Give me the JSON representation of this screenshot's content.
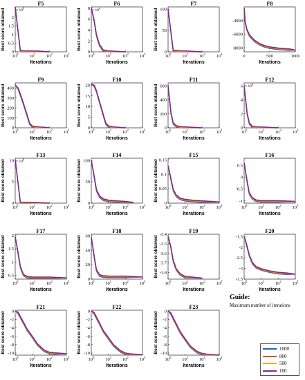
{
  "guide": {
    "title": "Guide:",
    "subtitle": "Maximum number of iterations"
  },
  "legend": [
    {
      "label": "1000",
      "color": "#1f5fbf"
    },
    {
      "label": "800",
      "color": "#d9541a"
    },
    {
      "label": "500",
      "color": "#e8b21c"
    },
    {
      "label": "100",
      "color": "#7b2a8e"
    }
  ],
  "shade_color": "#f4c6ea",
  "chart_data": [
    {
      "title": "F5",
      "type": "line",
      "xscale": "log",
      "xlim": [
        1,
        1000
      ],
      "xticks": [
        "10^0",
        "10^1",
        "10^2",
        "10^3"
      ],
      "xlabel": "Iterations",
      "ylabel": "Best score obtained",
      "exponent": "× 10^8",
      "ylim": [
        0,
        2.6
      ],
      "yticks": [
        0,
        0.5,
        1,
        1.5,
        2
      ],
      "ytick_labels": [
        "0",
        "0.5",
        "1",
        "1.5",
        "2"
      ],
      "series_x": [
        1,
        2,
        3,
        5,
        10,
        20,
        100
      ],
      "series_y": [
        2.6,
        0.03,
        0.01,
        0.005,
        0.002,
        0.001,
        0.0008
      ],
      "shade": false
    },
    {
      "title": "F6",
      "type": "line",
      "xscale": "log",
      "xlim": [
        1,
        1000
      ],
      "xticks": [
        "10^0",
        "10^1",
        "10^2",
        "10^3"
      ],
      "xlabel": "Iterations",
      "ylabel": "Best score obtained",
      "exponent": "× 10^4",
      "ylim": [
        0,
        8.2
      ],
      "yticks": [
        0,
        2,
        4,
        6,
        8
      ],
      "ytick_labels": [
        "0",
        "2",
        "4",
        "6",
        "8"
      ],
      "series_x": [
        1,
        1.5,
        2,
        3,
        5,
        10,
        100
      ],
      "series_y": [
        8,
        5.5,
        3.0,
        1.2,
        0.2,
        0.02,
        0.005
      ],
      "shade": false
    },
    {
      "title": "F7",
      "type": "line",
      "xscale": "log",
      "xlim": [
        1,
        1000
      ],
      "xticks": [
        "10^0",
        "10^1",
        "10^2",
        "10^3"
      ],
      "xlabel": "Iterations",
      "ylabel": "Best score obtained",
      "exponent": "",
      "ylim": [
        0,
        105
      ],
      "yticks": [
        0,
        50,
        100
      ],
      "ytick_labels": [
        "0",
        "50",
        "100"
      ],
      "series_x": [
        1,
        2,
        3,
        5,
        10,
        100
      ],
      "series_y": [
        100,
        2,
        1,
        0.5,
        0.2,
        0.05
      ],
      "shade": false
    },
    {
      "title": "F8",
      "type": "line",
      "xscale": "linear",
      "xlim": [
        0,
        1000
      ],
      "xticks": [
        "0",
        "500",
        "1000"
      ],
      "xtick_values": [
        0,
        500,
        1000
      ],
      "xlabel": "Iterations",
      "ylabel": "",
      "exponent": "",
      "ylim": [
        -8600,
        -2000
      ],
      "yticks": [
        -8000,
        -6000,
        -4000
      ],
      "ytick_labels": [
        "-8000",
        "-6000",
        "-4000"
      ],
      "series_x": [
        1,
        20,
        50,
        100,
        200,
        300,
        400,
        500,
        700,
        900,
        1000
      ],
      "series_y": [
        -2200,
        -4300,
        -5300,
        -6200,
        -7000,
        -7500,
        -7800,
        -8000,
        -8200,
        -8300,
        -8350
      ],
      "shade": false
    },
    {
      "title": "F9",
      "type": "line",
      "xscale": "log",
      "xlim": [
        1,
        1000
      ],
      "xticks": [
        "10^0",
        "10^1",
        "10^2",
        "10^3"
      ],
      "xlabel": "Iterations",
      "ylabel": "Best score obtained",
      "exponent": "",
      "ylim": [
        0,
        450
      ],
      "yticks": [
        0,
        100,
        200,
        300,
        400
      ],
      "ytick_labels": [
        "0",
        "100",
        "200",
        "300",
        "400"
      ],
      "series_x": [
        1,
        1.5,
        2,
        3,
        5,
        7,
        10,
        20,
        100
      ],
      "series_y": [
        430,
        390,
        330,
        240,
        120,
        40,
        10,
        2,
        0.5
      ],
      "shade": false
    },
    {
      "title": "F10",
      "type": "line",
      "xscale": "log",
      "xlim": [
        1,
        1000
      ],
      "xticks": [
        "10^0",
        "10^1",
        "10^2",
        "10^3"
      ],
      "xlabel": "Iterations",
      "ylabel": "Best score obtained",
      "exponent": "",
      "ylim": [
        0,
        21
      ],
      "yticks": [
        0,
        5,
        10,
        15,
        20
      ],
      "ytick_labels": [
        "0",
        "5",
        "10",
        "15",
        "20"
      ],
      "series_x": [
        1,
        1.5,
        2,
        3,
        5,
        7,
        10,
        20,
        100
      ],
      "series_y": [
        20.5,
        19.5,
        17,
        12,
        6,
        2,
        0.5,
        0.05,
        0.001
      ],
      "shade": false
    },
    {
      "title": "F11",
      "type": "line",
      "xscale": "log",
      "xlim": [
        1,
        1000
      ],
      "xticks": [
        "10^0",
        "10^1",
        "10^2",
        "10^3"
      ],
      "xlabel": "Iterations",
      "ylabel": "Best score obtained",
      "exponent": "",
      "ylim": [
        0,
        640
      ],
      "yticks": [
        0,
        200,
        400,
        600
      ],
      "ytick_labels": [
        "0",
        "200",
        "400",
        "600"
      ],
      "series_x": [
        1,
        1.5,
        2,
        3,
        5,
        10,
        100
      ],
      "series_y": [
        600,
        200,
        60,
        20,
        5,
        1,
        0.01
      ],
      "shade": false
    },
    {
      "title": "F12",
      "type": "line",
      "xscale": "log",
      "xlim": [
        1,
        1000
      ],
      "xticks": [
        "10^0",
        "10^1",
        "10^2",
        "10^3"
      ],
      "xlabel": "Iterations",
      "ylabel": "",
      "exponent": "× 10^8",
      "ylim": [
        0,
        6.4
      ],
      "yticks": [
        0,
        2,
        4,
        6
      ],
      "ytick_labels": [
        "0",
        "2",
        "4",
        "6"
      ],
      "series_x": [
        1,
        1.5,
        2,
        3,
        5,
        10,
        100
      ],
      "series_y": [
        6,
        2,
        0.6,
        0.1,
        0.02,
        0.005,
        0.001
      ],
      "shade": false
    },
    {
      "title": "F13",
      "type": "line",
      "xscale": "log",
      "xlim": [
        1,
        1000
      ],
      "xticks": [
        "10^0",
        "10^1",
        "10^2",
        "10^3"
      ],
      "xlabel": "Iterations",
      "ylabel": "Best score obtained",
      "exponent": "× 10^8",
      "ylim": [
        0,
        10.5
      ],
      "yticks": [
        0,
        5,
        10
      ],
      "ytick_labels": [
        "0",
        "5",
        "10"
      ],
      "series_x": [
        1,
        2,
        3,
        5,
        10,
        100
      ],
      "series_y": [
        10.2,
        0.05,
        0.02,
        0.01,
        0.005,
        0.001
      ],
      "shade": false
    },
    {
      "title": "F14",
      "type": "line",
      "xscale": "log",
      "xlim": [
        1,
        1000
      ],
      "xticks": [
        "10^0",
        "10^1",
        "10^2",
        "10^3"
      ],
      "xlabel": "Iterations",
      "ylabel": "Best score obtained",
      "exponent": "",
      "ylim": [
        0,
        105
      ],
      "yticks": [
        0,
        50,
        100
      ],
      "ytick_labels": [
        "0",
        "50",
        "100"
      ],
      "series_x": [
        1,
        1.5,
        2,
        3,
        5,
        10,
        20,
        50,
        100,
        300
      ],
      "series_y": [
        100,
        60,
        30,
        15,
        8,
        5,
        4,
        3,
        2,
        1.5
      ],
      "shade": true
    },
    {
      "title": "F15",
      "type": "line",
      "xscale": "log",
      "xlim": [
        1,
        1000
      ],
      "xticks": [
        "10^0",
        "10^1",
        "10^2",
        "10^3"
      ],
      "xlabel": "Iterations",
      "ylabel": "Best score obtained",
      "exponent": "",
      "ylim": [
        0,
        0.155
      ],
      "yticks": [
        0,
        0.05,
        0.1,
        0.15
      ],
      "ytick_labels": [
        "0",
        "0.05",
        "0.1",
        "0.15"
      ],
      "series_x": [
        1,
        1.5,
        2,
        3,
        5,
        10,
        30,
        100,
        1000
      ],
      "series_y": [
        0.13,
        0.08,
        0.045,
        0.025,
        0.015,
        0.01,
        0.007,
        0.005,
        0.004
      ],
      "shade": true
    },
    {
      "title": "F16",
      "type": "line",
      "xscale": "log",
      "xlim": [
        1,
        1000
      ],
      "xticks": [
        "10^0",
        "10^1",
        "10^2",
        "10^3"
      ],
      "xlabel": "Iterations",
      "ylabel": "",
      "exponent": "",
      "ylim": [
        -1.1,
        0.8
      ],
      "yticks": [
        -1,
        -0.5,
        0,
        0.5
      ],
      "ytick_labels": [
        "-1",
        "-0.5",
        "0",
        "0.5"
      ],
      "series_x": [
        1,
        1.5,
        2,
        3,
        5,
        10,
        100,
        1000
      ],
      "series_y": [
        0.6,
        -0.2,
        -0.7,
        -0.9,
        -1.0,
        -1.03,
        -1.03,
        -1.03
      ],
      "shade": true
    },
    {
      "title": "F17",
      "type": "line",
      "xscale": "log",
      "xlim": [
        1,
        1000
      ],
      "xticks": [
        "10^0",
        "10^1",
        "10^2",
        "10^3"
      ],
      "xlabel": "Iterations",
      "ylabel": "Best score obtained",
      "exponent": "",
      "ylim": [
        0.35,
        2.05
      ],
      "yticks": [
        0.5,
        1,
        1.5,
        2
      ],
      "ytick_labels": [
        "0.5",
        "1",
        "1.5",
        "2"
      ],
      "series_x": [
        1,
        1.5,
        2,
        3,
        5,
        10,
        100,
        1000
      ],
      "series_y": [
        1.95,
        1.3,
        0.8,
        0.5,
        0.42,
        0.4,
        0.398,
        0.398
      ],
      "shade": false
    },
    {
      "title": "F18",
      "type": "line",
      "xscale": "log",
      "xlim": [
        1,
        1000
      ],
      "xticks": [
        "10^0",
        "10^1",
        "10^2",
        "10^3"
      ],
      "xlabel": "Iterations",
      "ylabel": "Best score obtained",
      "exponent": "",
      "ylim": [
        0,
        62
      ],
      "yticks": [
        0,
        20,
        40,
        60
      ],
      "ytick_labels": [
        "0",
        "20",
        "40",
        "60"
      ],
      "series_x": [
        1,
        1.5,
        2,
        3,
        5,
        10,
        100,
        1000
      ],
      "series_y": [
        58,
        30,
        12,
        5,
        3.5,
        3.1,
        3,
        3
      ],
      "shade": false
    },
    {
      "title": "F19",
      "type": "line",
      "xscale": "log",
      "xlim": [
        1,
        1000
      ],
      "xticks": [
        "10^0",
        "10^1",
        "10^2",
        "10^3"
      ],
      "xlabel": "Iterations",
      "ylabel": "Best score obtained",
      "exponent": "",
      "ylim": [
        -3.87,
        -3.4
      ],
      "yticks": [
        -3.8,
        -3.7,
        -3.6,
        -3.5,
        -3.4
      ],
      "ytick_labels": [
        "-3.8",
        "-3.7",
        "-3.6",
        "-3.5",
        "-3.4"
      ],
      "series_x": [
        1,
        1.5,
        2,
        3,
        5,
        10,
        100
      ],
      "series_y": [
        -3.42,
        -3.55,
        -3.68,
        -3.77,
        -3.82,
        -3.85,
        -3.86
      ],
      "shade": false
    },
    {
      "title": "F20",
      "type": "line",
      "xscale": "log",
      "xlim": [
        1,
        1000
      ],
      "xticks": [
        "10^0",
        "10^1",
        "10^2",
        "10^3"
      ],
      "xlabel": "Iterations",
      "ylabel": "",
      "exponent": "",
      "ylim": [
        -3.5,
        -1.4
      ],
      "yticks": [
        -3.5,
        -3,
        -2.5,
        -2,
        -1.5
      ],
      "ytick_labels": [
        "-3.5",
        "-3",
        "-2.5",
        "-2",
        "-1.5"
      ],
      "series_x": [
        1,
        1.5,
        2,
        3,
        5,
        10,
        30,
        100,
        300,
        1000
      ],
      "series_y": [
        -1.5,
        -2.0,
        -2.4,
        -2.75,
        -2.95,
        -3.05,
        -3.15,
        -3.22,
        -3.25,
        -3.27
      ],
      "shade": true
    },
    {
      "title": "F21",
      "type": "line",
      "xscale": "log",
      "xlim": [
        1,
        1000
      ],
      "xticks": [
        "10^0",
        "10^1",
        "10^2",
        "10^3"
      ],
      "xlabel": "Iterations",
      "ylabel": "Best score obtained",
      "exponent": "",
      "ylim": [
        -10.5,
        0.2
      ],
      "yticks": [
        -10,
        -8,
        -6,
        -4,
        -2,
        0
      ],
      "ytick_labels": [
        "-10",
        "-8",
        "-6",
        "-4",
        "-2",
        "0"
      ],
      "series_x": [
        1,
        1.5,
        2,
        3,
        5,
        10,
        20,
        50,
        100,
        200,
        1000
      ],
      "series_y": [
        0,
        -0.5,
        -1.5,
        -2.8,
        -4.5,
        -6.2,
        -8,
        -9.5,
        -10,
        -10.15,
        -10.15
      ],
      "shade": true
    },
    {
      "title": "F22",
      "type": "line",
      "xscale": "log",
      "xlim": [
        1,
        1000
      ],
      "xticks": [
        "10^0",
        "10^1",
        "10^2",
        "10^3"
      ],
      "xlabel": "Iterations",
      "ylabel": "Best score obtained",
      "exponent": "",
      "ylim": [
        -10.5,
        0.2
      ],
      "yticks": [
        -10,
        -8,
        -6,
        -4,
        -2,
        0
      ],
      "ytick_labels": [
        "-10",
        "-8",
        "-6",
        "-4",
        "-2",
        "0"
      ],
      "series_x": [
        1,
        1.5,
        2,
        3,
        5,
        10,
        20,
        50,
        100,
        200,
        1000
      ],
      "series_y": [
        0,
        -0.6,
        -1.6,
        -3,
        -4.8,
        -6.5,
        -8.2,
        -9.6,
        -10.2,
        -10.4,
        -10.4
      ],
      "shade": true
    },
    {
      "title": "F23",
      "type": "line",
      "xscale": "log",
      "xlim": [
        1,
        1000
      ],
      "xticks": [
        "10^0",
        "10^1",
        "10^2",
        "10^3"
      ],
      "xlabel": "Iterations",
      "ylabel": "Best score obtained",
      "exponent": "",
      "ylim": [
        -10.5,
        0.2
      ],
      "yticks": [
        -10,
        -8,
        -6,
        -4,
        -2,
        0
      ],
      "ytick_labels": [
        "-10",
        "-8",
        "-6",
        "-4",
        "-2",
        "0"
      ],
      "series_x": [
        1,
        1.5,
        2,
        3,
        5,
        10,
        20,
        50,
        100,
        200,
        1000
      ],
      "series_y": [
        0,
        -0.7,
        -1.8,
        -3.2,
        -5,
        -6.8,
        -8.5,
        -9.8,
        -10.3,
        -10.5,
        -10.5
      ],
      "shade": true
    }
  ]
}
